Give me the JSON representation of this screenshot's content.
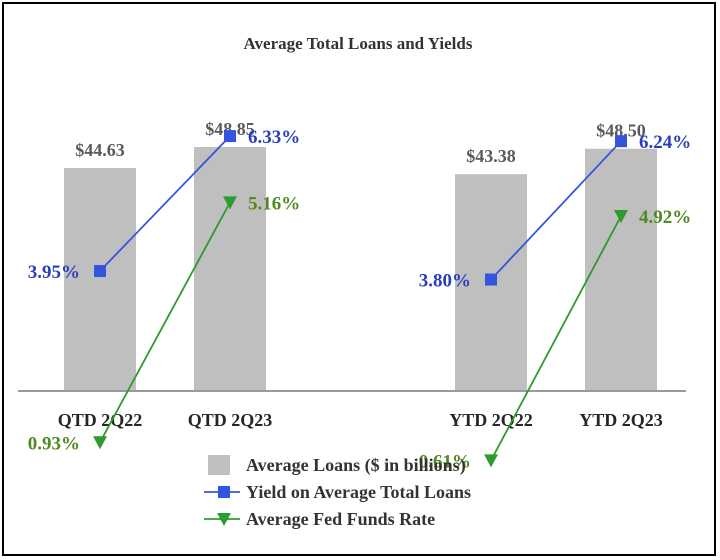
{
  "chart_data": {
    "type": "bar",
    "title": "Average Total Loans and Yields",
    "xlabel": "",
    "ylabel": "",
    "categories": [
      "QTD 2Q22",
      "QTD 2Q23",
      "YTD 2Q22",
      "YTD 2Q23"
    ],
    "series": [
      {
        "name": "Average Loans ($ in billions)",
        "type": "bar",
        "values": [
          44.63,
          48.85,
          43.38,
          48.5
        ],
        "labels": [
          "$44.63",
          "$48.85",
          "$43.38",
          "$48.50"
        ],
        "color": "#bfbfbf",
        "marker": "square"
      },
      {
        "name": "Yield on Average Total Loans",
        "type": "line",
        "values": [
          3.95,
          6.33,
          3.8,
          6.24
        ],
        "labels": [
          "3.95%",
          "6.33%",
          "3.80%",
          "6.24%"
        ],
        "color": "#3355dd",
        "label_color": "#2a3ec0",
        "marker": "square"
      },
      {
        "name": "Average Fed Funds Rate",
        "type": "line",
        "values": [
          0.93,
          5.16,
          0.61,
          4.92
        ],
        "labels": [
          "0.93%",
          "5.16%",
          "0.61%",
          "4.92%"
        ],
        "color": "#2f9a2f",
        "label_color": "#4f8a1e",
        "marker": "triangle-down"
      }
    ],
    "groups": [
      [
        "QTD 2Q22",
        "QTD 2Q23"
      ],
      [
        "YTD 2Q22",
        "YTD 2Q23"
      ]
    ],
    "legend_position": "bottom-center",
    "grid": false
  }
}
